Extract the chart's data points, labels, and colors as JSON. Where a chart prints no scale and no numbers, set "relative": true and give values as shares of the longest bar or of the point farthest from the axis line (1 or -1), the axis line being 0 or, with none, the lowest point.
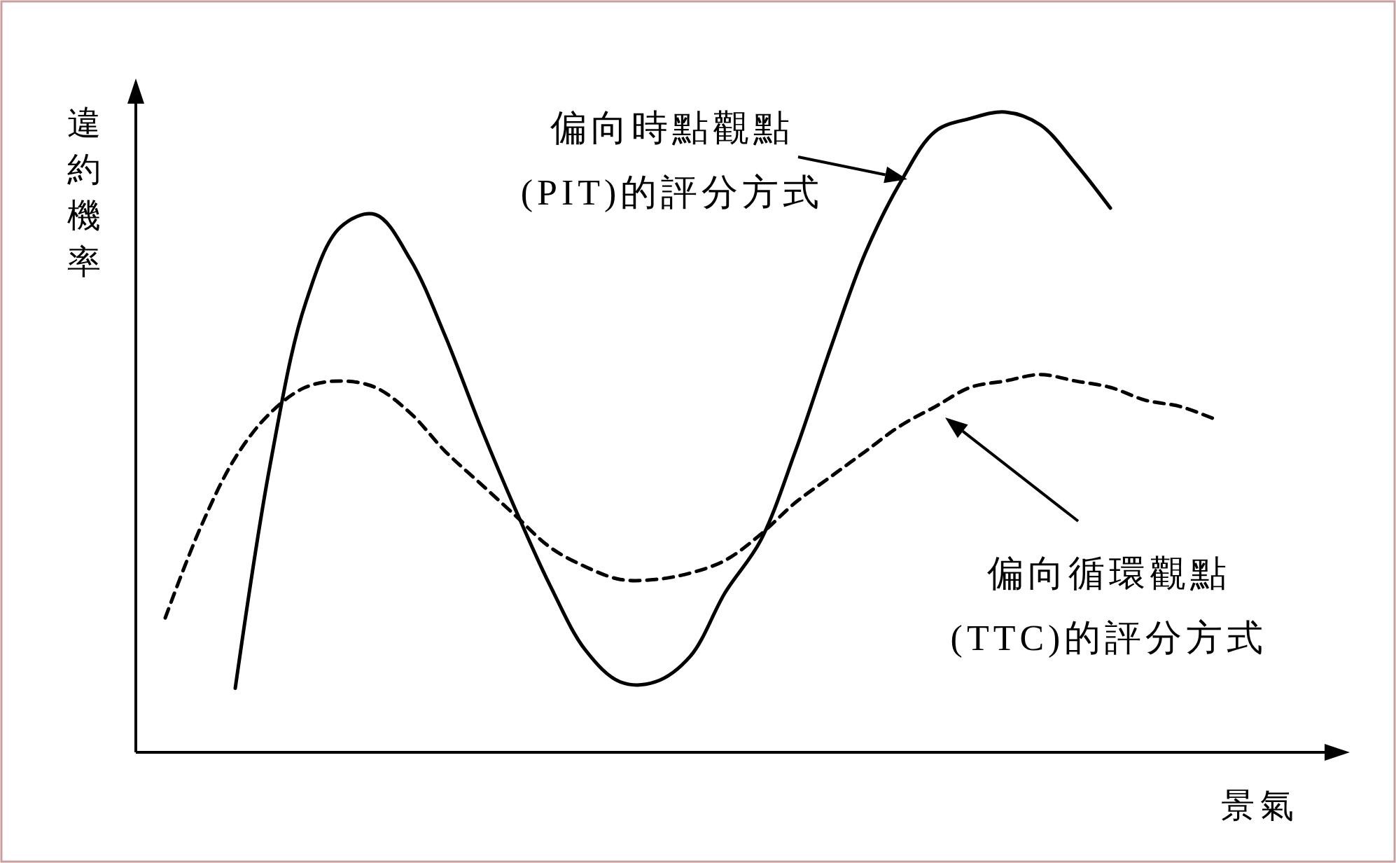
{
  "chart_data": {
    "type": "line",
    "relative": true,
    "xlabel": "景氣",
    "ylabel": "違約機率",
    "categories": [
      null,
      null,
      null,
      null,
      null,
      null,
      null,
      null,
      null,
      null,
      null,
      null,
      null,
      null,
      null,
      null,
      null,
      null,
      null,
      null,
      null,
      null,
      null,
      null,
      null,
      null,
      null,
      null,
      null,
      null,
      null
    ],
    "series": [
      {
        "color": "#000000",
        "line_style": "solid",
        "values": [
          null,
          null,
          0.1,
          0.45,
          0.7,
          0.82,
          0.84,
          0.77,
          0.65,
          0.51,
          0.38,
          0.26,
          0.16,
          0.11,
          0.11,
          0.15,
          0.25,
          0.33,
          0.47,
          0.63,
          0.78,
          0.89,
          0.97,
          0.99,
          1,
          0.98,
          0.92,
          0.85,
          null,
          null,
          null
        ]
      },
      {
        "color": "#000000",
        "line_style": "dashed",
        "values": [
          0.21,
          0.35,
          0.46,
          0.53,
          0.57,
          0.58,
          0.57,
          0.53,
          0.47,
          0.42,
          0.37,
          0.32,
          0.29,
          0.27,
          0.27,
          0.28,
          0.3,
          0.34,
          0.39,
          0.43,
          0.47,
          0.51,
          0.54,
          0.57,
          0.58,
          0.59,
          0.58,
          0.57,
          0.55,
          0.54,
          0.52
        ]
      }
    ],
    "annotations": [
      "偏向時點觀點\n(PIT)的評分方式",
      "偏向循環觀點\n(TTC)的評分方式"
    ]
  }
}
